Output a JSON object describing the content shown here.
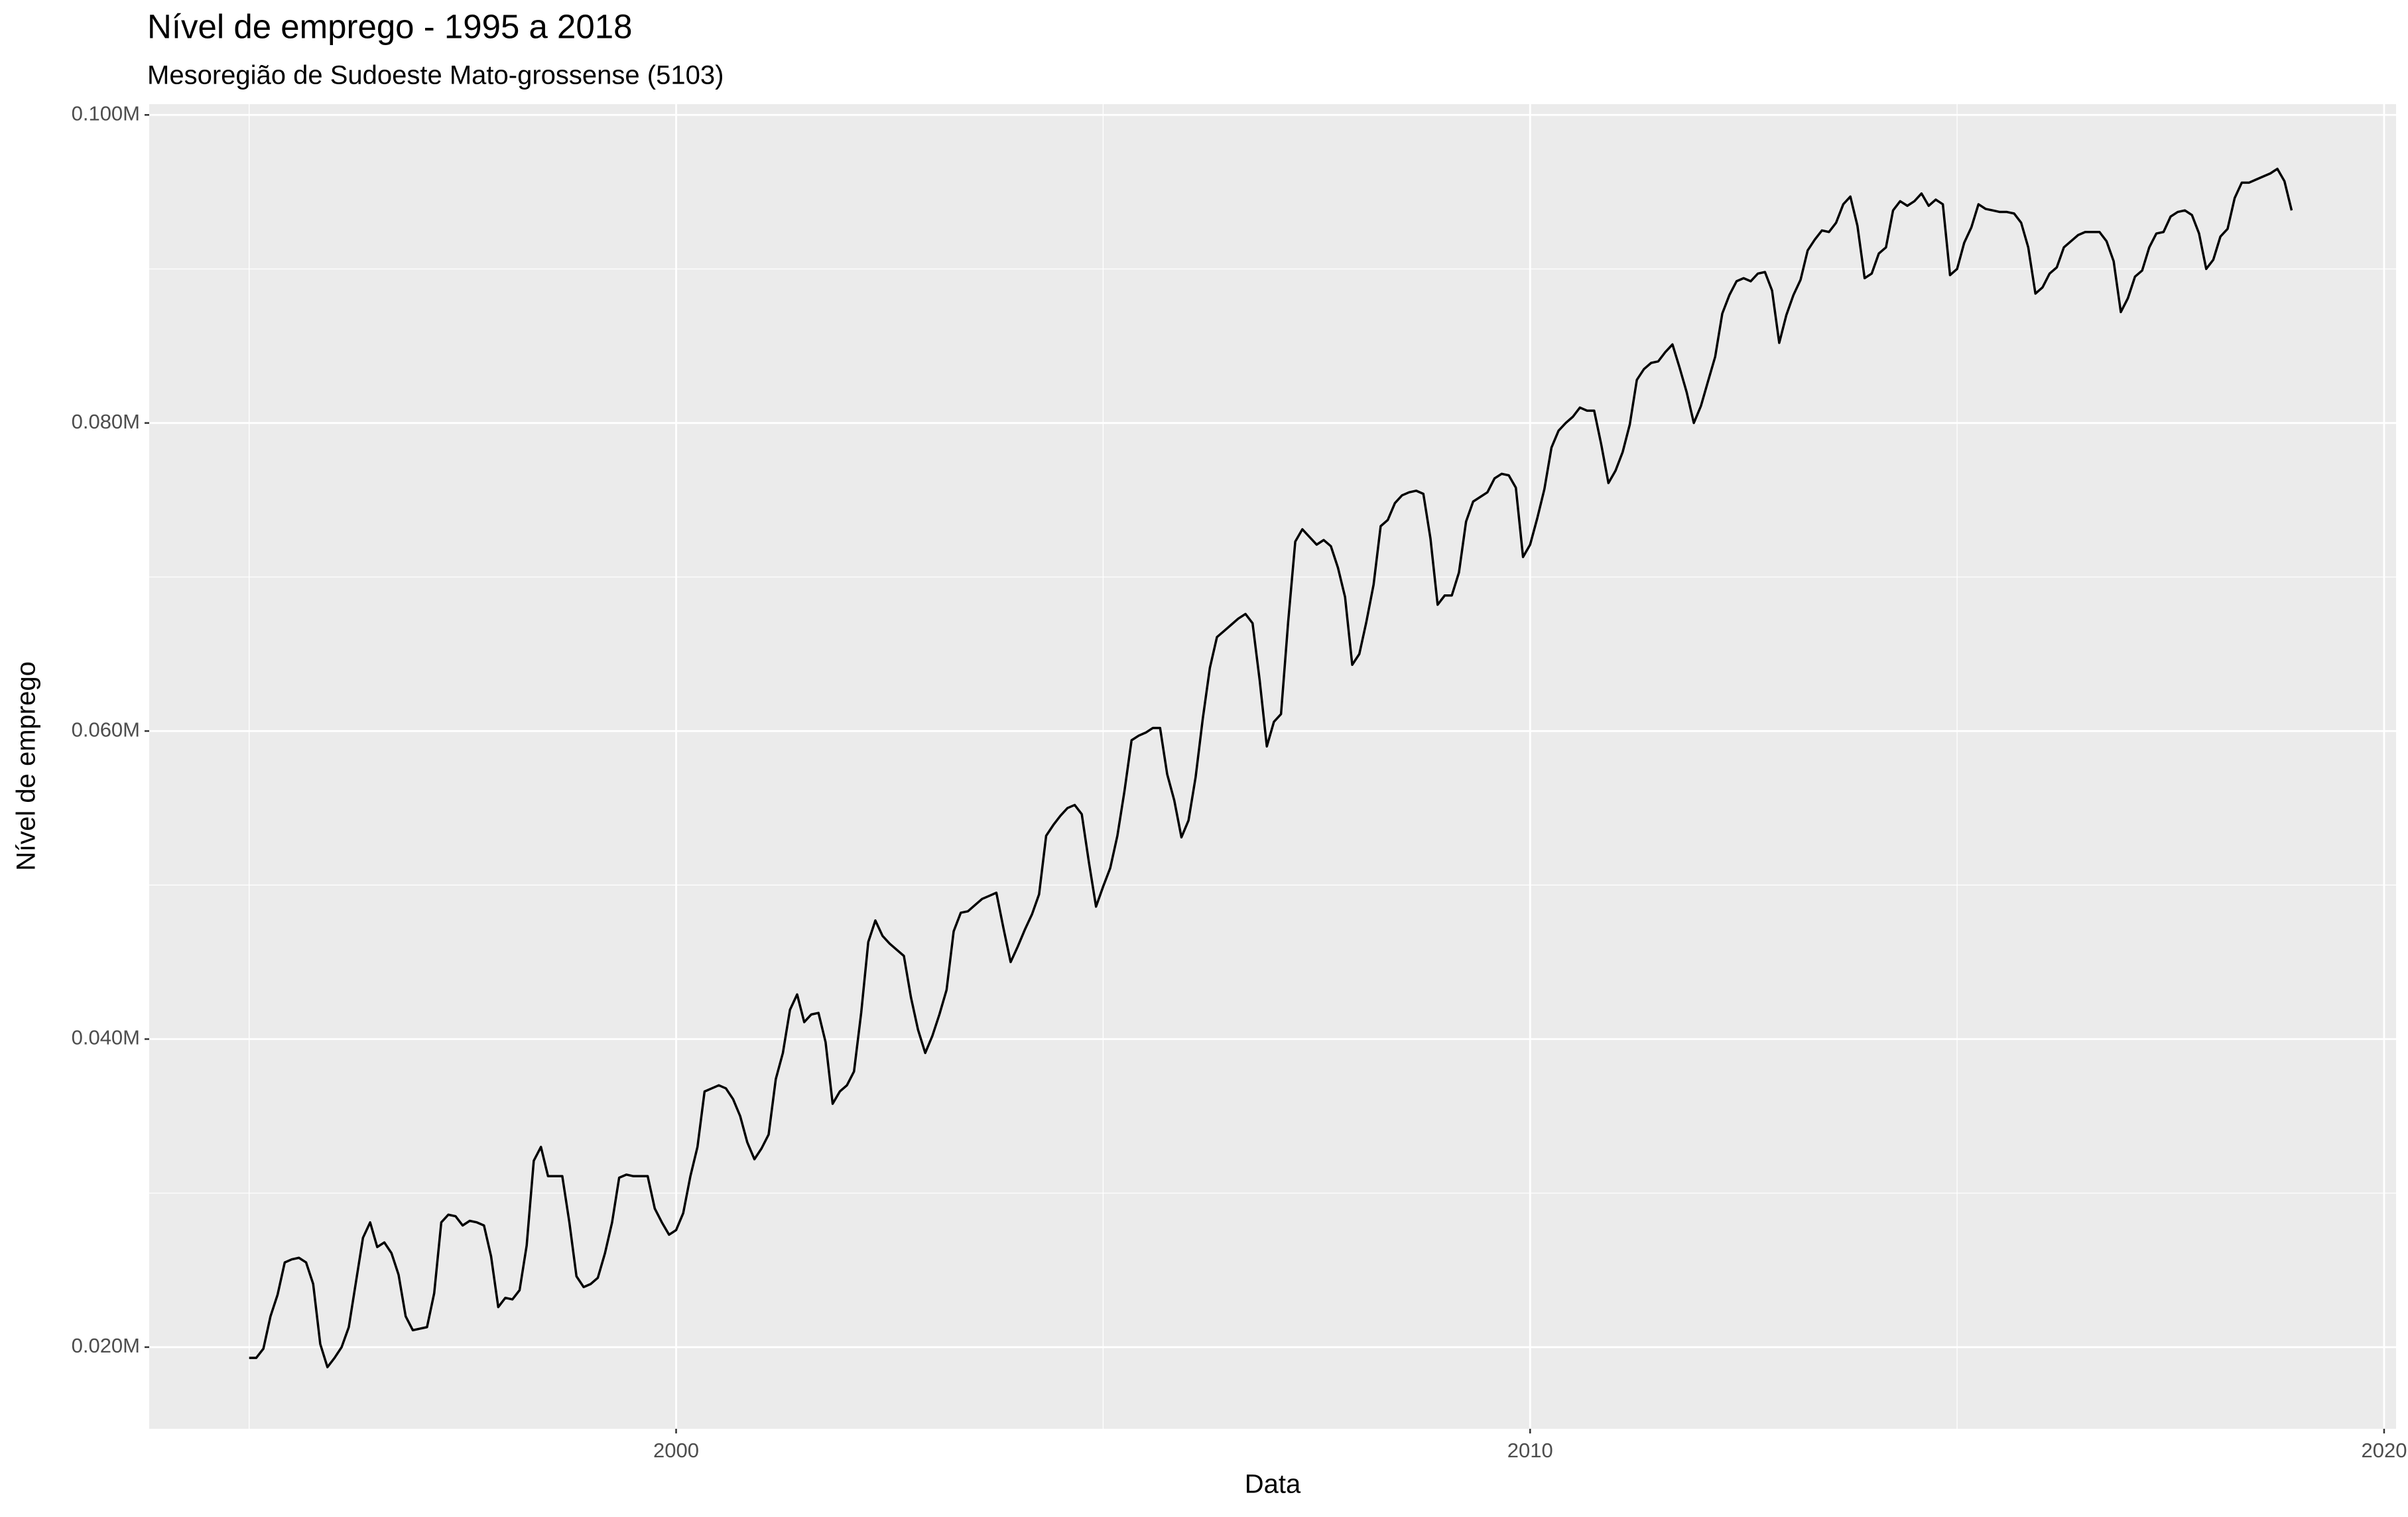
{
  "chart_data": {
    "type": "line",
    "title": "Nível de emprego - 1995 a 2018",
    "subtitle": "Mesoregião de Sudoeste Mato-grossense (5103)",
    "x_label": "Data",
    "y_label": "Nível de emprego",
    "color": "#000000",
    "grid": true,
    "xlim": [
      1993.83,
      2020.14
    ],
    "xticks": [
      2000,
      2010,
      2020
    ],
    "ylim": [
      0.0147,
      0.1007
    ],
    "yticks": [
      {
        "value": 0.02,
        "label": "0.020M"
      },
      {
        "value": 0.04,
        "label": "0.040M"
      },
      {
        "value": 0.06,
        "label": "0.060M"
      },
      {
        "value": 0.08,
        "label": "0.080M"
      },
      {
        "value": 0.1,
        "label": "0.100M"
      }
    ],
    "x": [
      1995,
      1995.083,
      1995.167,
      1995.25,
      1995.333,
      1995.417,
      1995.5,
      1995.583,
      1995.667,
      1995.75,
      1995.833,
      1995.917,
      1996,
      1996.083,
      1996.167,
      1996.25,
      1996.333,
      1996.417,
      1996.5,
      1996.583,
      1996.667,
      1996.75,
      1996.833,
      1996.917,
      1997,
      1997.083,
      1997.167,
      1997.25,
      1997.333,
      1997.417,
      1997.5,
      1997.583,
      1997.667,
      1997.75,
      1997.833,
      1997.917,
      1998,
      1998.083,
      1998.167,
      1998.25,
      1998.333,
      1998.417,
      1998.5,
      1998.583,
      1998.667,
      1998.75,
      1998.833,
      1998.917,
      1999,
      1999.083,
      1999.167,
      1999.25,
      1999.333,
      1999.417,
      1999.5,
      1999.583,
      1999.667,
      1999.75,
      1999.833,
      1999.917,
      2000,
      2000.083,
      2000.167,
      2000.25,
      2000.333,
      2000.417,
      2000.5,
      2000.583,
      2000.667,
      2000.75,
      2000.833,
      2000.917,
      2001,
      2001.083,
      2001.167,
      2001.25,
      2001.333,
      2001.417,
      2001.5,
      2001.583,
      2001.667,
      2001.75,
      2001.833,
      2001.917,
      2002,
      2002.083,
      2002.167,
      2002.25,
      2002.333,
      2002.417,
      2002.5,
      2002.583,
      2002.667,
      2002.75,
      2002.833,
      2002.917,
      2003,
      2003.083,
      2003.167,
      2003.25,
      2003.333,
      2003.417,
      2003.5,
      2003.583,
      2003.667,
      2003.75,
      2003.833,
      2003.917,
      2004,
      2004.083,
      2004.167,
      2004.25,
      2004.333,
      2004.417,
      2004.5,
      2004.583,
      2004.667,
      2004.75,
      2004.833,
      2004.917,
      2005,
      2005.083,
      2005.167,
      2005.25,
      2005.333,
      2005.417,
      2005.5,
      2005.583,
      2005.667,
      2005.75,
      2005.833,
      2005.917,
      2006,
      2006.083,
      2006.167,
      2006.25,
      2006.333,
      2006.417,
      2006.5,
      2006.583,
      2006.667,
      2006.75,
      2006.833,
      2006.917,
      2007,
      2007.083,
      2007.167,
      2007.25,
      2007.333,
      2007.417,
      2007.5,
      2007.583,
      2007.667,
      2007.75,
      2007.833,
      2007.917,
      2008,
      2008.083,
      2008.167,
      2008.25,
      2008.333,
      2008.417,
      2008.5,
      2008.583,
      2008.667,
      2008.75,
      2008.833,
      2008.917,
      2009,
      2009.083,
      2009.167,
      2009.25,
      2009.333,
      2009.417,
      2009.5,
      2009.583,
      2009.667,
      2009.75,
      2009.833,
      2009.917,
      2010,
      2010.083,
      2010.167,
      2010.25,
      2010.333,
      2010.417,
      2010.5,
      2010.583,
      2010.667,
      2010.75,
      2010.833,
      2010.917,
      2011,
      2011.083,
      2011.167,
      2011.25,
      2011.333,
      2011.417,
      2011.5,
      2011.583,
      2011.667,
      2011.75,
      2011.833,
      2011.917,
      2012,
      2012.083,
      2012.167,
      2012.25,
      2012.333,
      2012.417,
      2012.5,
      2012.583,
      2012.667,
      2012.75,
      2012.833,
      2012.917,
      2013,
      2013.083,
      2013.167,
      2013.25,
      2013.333,
      2013.417,
      2013.5,
      2013.583,
      2013.667,
      2013.75,
      2013.833,
      2013.917,
      2014,
      2014.083,
      2014.167,
      2014.25,
      2014.333,
      2014.417,
      2014.5,
      2014.583,
      2014.667,
      2014.75,
      2014.833,
      2014.917,
      2015,
      2015.083,
      2015.167,
      2015.25,
      2015.333,
      2015.417,
      2015.5,
      2015.583,
      2015.667,
      2015.75,
      2015.833,
      2015.917,
      2016,
      2016.083,
      2016.167,
      2016.25,
      2016.333,
      2016.417,
      2016.5,
      2016.583,
      2016.667,
      2016.75,
      2016.833,
      2016.917,
      2017,
      2017.083,
      2017.167,
      2017.25,
      2017.333,
      2017.417,
      2017.5,
      2017.583,
      2017.667,
      2017.75,
      2017.833,
      2017.917,
      2018,
      2018.083,
      2018.167,
      2018.25,
      2018.333,
      2018.417,
      2018.5,
      2018.583,
      2018.667,
      2018.75,
      2018.833,
      2018.917
    ],
    "values": [
      0.0193,
      0.0193,
      0.0199,
      0.022,
      0.0234,
      0.0255,
      0.0257,
      0.0258,
      0.0255,
      0.0241,
      0.0202,
      0.0187,
      0.0193,
      0.02,
      0.0213,
      0.0242,
      0.0271,
      0.0281,
      0.0265,
      0.0268,
      0.0261,
      0.0247,
      0.022,
      0.0211,
      0.0212,
      0.0213,
      0.0235,
      0.0281,
      0.0286,
      0.0285,
      0.0279,
      0.0282,
      0.0281,
      0.0279,
      0.0259,
      0.0226,
      0.0232,
      0.0231,
      0.0237,
      0.0266,
      0.0321,
      0.033,
      0.0311,
      0.0311,
      0.0311,
      0.0281,
      0.0246,
      0.0239,
      0.0241,
      0.0245,
      0.0261,
      0.0281,
      0.031,
      0.0312,
      0.0311,
      0.0311,
      0.0311,
      0.029,
      0.0281,
      0.0273,
      0.0276,
      0.0287,
      0.0311,
      0.033,
      0.0366,
      0.0368,
      0.037,
      0.0368,
      0.0361,
      0.035,
      0.0333,
      0.0322,
      0.0329,
      0.0338,
      0.0374,
      0.0391,
      0.0419,
      0.0429,
      0.0411,
      0.0416,
      0.0417,
      0.0398,
      0.0358,
      0.0366,
      0.037,
      0.0379,
      0.0417,
      0.0463,
      0.0477,
      0.0467,
      0.0462,
      0.0458,
      0.0454,
      0.0427,
      0.0406,
      0.0391,
      0.0402,
      0.0416,
      0.0432,
      0.047,
      0.0482,
      0.0483,
      0.0487,
      0.0491,
      0.0493,
      0.0495,
      0.0472,
      0.045,
      0.046,
      0.0471,
      0.0481,
      0.0494,
      0.0532,
      0.0539,
      0.0545,
      0.055,
      0.0552,
      0.0546,
      0.0515,
      0.0486,
      0.0499,
      0.0511,
      0.0532,
      0.0561,
      0.0594,
      0.0597,
      0.0599,
      0.0602,
      0.0602,
      0.0572,
      0.0555,
      0.0531,
      0.0542,
      0.057,
      0.0608,
      0.0641,
      0.0661,
      0.0665,
      0.0669,
      0.0673,
      0.0676,
      0.067,
      0.0633,
      0.059,
      0.0606,
      0.0611,
      0.0671,
      0.0723,
      0.0731,
      0.0726,
      0.0721,
      0.0724,
      0.072,
      0.0706,
      0.0687,
      0.0643,
      0.065,
      0.0671,
      0.0695,
      0.0733,
      0.0737,
      0.0748,
      0.0753,
      0.0755,
      0.0756,
      0.0754,
      0.0725,
      0.0682,
      0.0688,
      0.0688,
      0.0703,
      0.0736,
      0.0749,
      0.0752,
      0.0755,
      0.0764,
      0.0767,
      0.0766,
      0.0758,
      0.0713,
      0.0721,
      0.0738,
      0.0757,
      0.0784,
      0.0795,
      0.08,
      0.0804,
      0.081,
      0.0808,
      0.0808,
      0.0786,
      0.0761,
      0.0769,
      0.0781,
      0.0799,
      0.0828,
      0.0835,
      0.0839,
      0.084,
      0.0846,
      0.0851,
      0.0836,
      0.082,
      0.08,
      0.0811,
      0.0827,
      0.0843,
      0.0871,
      0.0883,
      0.0892,
      0.0894,
      0.0892,
      0.0897,
      0.0898,
      0.0886,
      0.0852,
      0.087,
      0.0883,
      0.0893,
      0.0912,
      0.0919,
      0.0925,
      0.0924,
      0.093,
      0.0942,
      0.0947,
      0.0928,
      0.0894,
      0.0897,
      0.091,
      0.0914,
      0.0938,
      0.0944,
      0.0941,
      0.0944,
      0.0949,
      0.0941,
      0.0945,
      0.0942,
      0.0896,
      0.09,
      0.0917,
      0.0927,
      0.0942,
      0.0939,
      0.0938,
      0.0937,
      0.0937,
      0.0936,
      0.093,
      0.0914,
      0.0884,
      0.0888,
      0.0897,
      0.0901,
      0.0914,
      0.0918,
      0.0922,
      0.0924,
      0.0924,
      0.0924,
      0.0918,
      0.0905,
      0.0872,
      0.0881,
      0.0895,
      0.0899,
      0.0914,
      0.0923,
      0.0924,
      0.0934,
      0.0937,
      0.0938,
      0.0935,
      0.0923,
      0.09,
      0.0906,
      0.0921,
      0.0926,
      0.0946,
      0.0956,
      0.0956,
      0.0958,
      0.096,
      0.0962,
      0.0965,
      0.0957,
      0.0938
    ]
  }
}
